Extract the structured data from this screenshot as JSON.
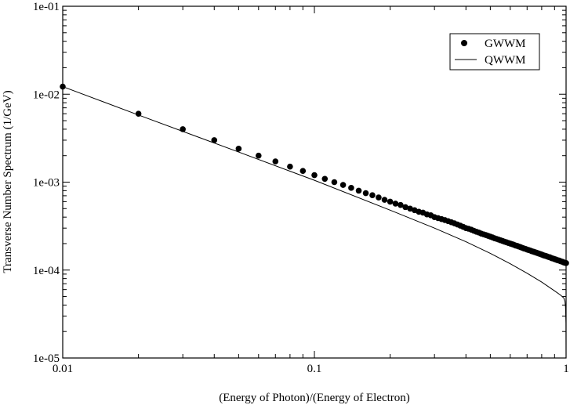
{
  "chart_data": {
    "type": "scatter",
    "title": "",
    "xlabel": "(Energy of Photon)/(Energy of Electron)",
    "ylabel": "Transverse Number Spectrum (1/GeV)",
    "xscale": "log",
    "yscale": "log",
    "xlim": [
      0.01,
      1
    ],
    "ylim": [
      1e-05,
      0.1
    ],
    "x_ticks": [
      "0.01",
      "0.1",
      "1"
    ],
    "y_ticks": [
      "1e-05",
      "1e-04",
      "1e-03",
      "1e-02",
      "1e-01"
    ],
    "grid": false,
    "legend_position": "top-right",
    "series": [
      {
        "name": "GWWM",
        "style": "markers",
        "color": "#000000",
        "x": [
          0.01,
          0.02,
          0.03,
          0.04,
          0.05,
          0.06,
          0.07,
          0.08,
          0.09,
          0.1,
          0.11,
          0.12,
          0.13,
          0.14,
          0.15,
          0.16,
          0.17,
          0.18,
          0.19,
          0.2,
          0.21,
          0.22,
          0.23,
          0.24,
          0.25,
          0.26,
          0.27,
          0.28,
          0.29,
          0.3,
          0.31,
          0.32,
          0.33,
          0.34,
          0.35,
          0.36,
          0.37,
          0.38,
          0.39,
          0.4,
          0.41,
          0.42,
          0.43,
          0.44,
          0.45,
          0.46,
          0.47,
          0.48,
          0.49,
          0.5,
          0.51,
          0.52,
          0.53,
          0.54,
          0.55,
          0.56,
          0.57,
          0.58,
          0.59,
          0.6,
          0.61,
          0.62,
          0.63,
          0.64,
          0.65,
          0.66,
          0.67,
          0.68,
          0.69,
          0.7,
          0.71,
          0.72,
          0.73,
          0.74,
          0.75,
          0.76,
          0.77,
          0.78,
          0.79,
          0.8,
          0.81,
          0.82,
          0.83,
          0.84,
          0.85,
          0.86,
          0.87,
          0.88,
          0.89,
          0.9,
          0.91,
          0.92,
          0.93,
          0.94,
          0.95,
          0.96,
          0.97,
          0.98,
          0.99,
          1.0
        ],
        "y": [
          0.0122,
          0.006,
          0.004,
          0.003,
          0.0024,
          0.002,
          0.00172,
          0.0015,
          0.00134,
          0.0012,
          0.00109,
          0.001,
          0.00093,
          0.00086,
          0.0008,
          0.00075,
          0.00071,
          0.00067,
          0.00063,
          0.0006,
          0.00057,
          0.00055,
          0.00052,
          0.0005,
          0.00048,
          0.00046,
          0.00045,
          0.00043,
          0.00042,
          0.0004,
          0.00039,
          0.00038,
          0.00037,
          0.00036,
          0.00035,
          0.00034,
          0.00033,
          0.00032,
          0.00031,
          0.0003,
          0.000295,
          0.000288,
          0.00028,
          0.000273,
          0.000267,
          0.00026,
          0.000255,
          0.00025,
          0.000245,
          0.00024,
          0.000235,
          0.00023,
          0.000226,
          0.000222,
          0.000218,
          0.000214,
          0.00021,
          0.000207,
          0.000203,
          0.0002,
          0.000197,
          0.000194,
          0.00019,
          0.000188,
          0.000185,
          0.000182,
          0.000179,
          0.000176,
          0.000174,
          0.000171,
          0.000169,
          0.000167,
          0.000164,
          0.000162,
          0.00016,
          0.000158,
          0.000156,
          0.000154,
          0.000152,
          0.00015,
          0.000148,
          0.000146,
          0.000145,
          0.000143,
          0.000141,
          0.00014,
          0.000138,
          0.000136,
          0.000135,
          0.000133,
          0.000132,
          0.00013,
          0.000129,
          0.000128,
          0.000126,
          0.000125,
          0.000124,
          0.000122,
          0.000121,
          0.00012
        ]
      },
      {
        "name": "QWWM",
        "style": "line",
        "color": "#000000",
        "x": [
          0.01,
          0.02,
          0.05,
          0.1,
          0.2,
          0.3,
          0.4,
          0.5,
          0.6,
          0.7,
          0.8,
          0.9,
          0.95,
          0.98,
          0.99,
          0.995,
          0.999,
          1.0
        ],
        "y": [
          0.0122,
          0.0058,
          0.0022,
          0.00105,
          0.00048,
          0.0003,
          0.00021,
          0.000155,
          0.000118,
          9.2e-05,
          7.3e-05,
          5.8e-05,
          5.2e-05,
          4.8e-05,
          4.4e-05,
          3.8e-05,
          2.5e-05,
          1e-05
        ]
      }
    ]
  }
}
